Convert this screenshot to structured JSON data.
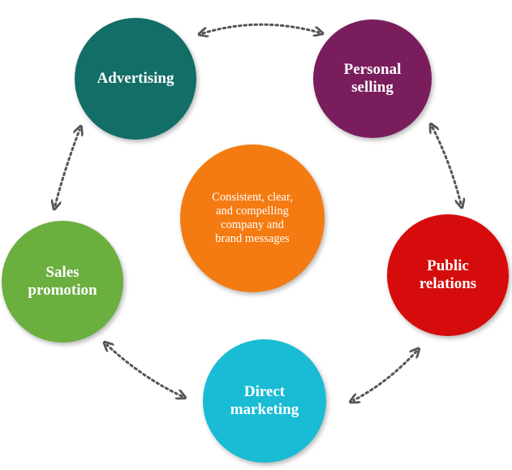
{
  "diagram": {
    "center": {
      "text": "Consistent, clear,\nand compelling\ncompany and\nbrand messages",
      "color": "#F47B12"
    },
    "nodes": [
      {
        "key": "advertising",
        "label": "Advertising",
        "color": "#126E66"
      },
      {
        "key": "personal_selling",
        "label": "Personal\nselling",
        "color": "#7A1D5D"
      },
      {
        "key": "public_relations",
        "label": "Public\nrelations",
        "color": "#D60C0C"
      },
      {
        "key": "direct_marketing",
        "label": "Direct\nmarketing",
        "color": "#19BCD4"
      },
      {
        "key": "sales_promotion",
        "label": "Sales\npromotion",
        "color": "#6BAF3F"
      }
    ],
    "arrow_color": "#555555"
  }
}
